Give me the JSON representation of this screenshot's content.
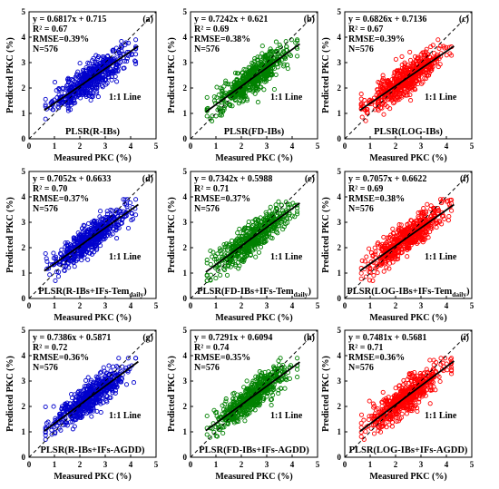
{
  "chart_data": [
    {
      "type": "scatter",
      "panel_label": "(a)",
      "method_label": "PLSR(R-IBs)",
      "equation": "y = 0.6817x + 0.715",
      "r2_label": "R² = 0.67",
      "rmse_label": "RMSE=0.39%",
      "n_label": "N=576",
      "slope": 0.6817,
      "intercept": 0.715,
      "color": "#0000cc",
      "xlabel": "Measured PKC (%)",
      "ylabel": "Predicted PKC (%)",
      "xlim": [
        0,
        5
      ],
      "ylim": [
        0,
        5
      ],
      "xticks": [
        "0",
        "1",
        "2",
        "3",
        "4",
        "5"
      ],
      "yticks": [
        "0",
        "1",
        "2",
        "3",
        "4",
        "5"
      ],
      "line_label": "1:1 Line"
    },
    {
      "type": "scatter",
      "panel_label": "(b)",
      "method_label": "PLSR(FD-IBs)",
      "equation": "y = 0.7242x + 0.621",
      "r2_label": "R² = 0.69",
      "rmse_label": "RMSE=0.38%",
      "n_label": "N=576",
      "slope": 0.7242,
      "intercept": 0.621,
      "color": "#008000",
      "xlabel": "Measured PKC (%)",
      "ylabel": "Predicted PKC (%)",
      "xlim": [
        0,
        5
      ],
      "ylim": [
        0,
        5
      ],
      "xticks": [
        "0",
        "1",
        "2",
        "3",
        "4",
        "5"
      ],
      "yticks": [
        "0",
        "1",
        "2",
        "3",
        "4",
        "5"
      ],
      "line_label": "1:1 Line"
    },
    {
      "type": "scatter",
      "panel_label": "(c)",
      "method_label": "PLSR(LOG-IBs)",
      "equation": "y = 0.6826x + 0.7136",
      "r2_label": "R² = 0.67",
      "rmse_label": "RMSE=0.39%",
      "n_label": "N=576",
      "slope": 0.6826,
      "intercept": 0.7136,
      "color": "#ff0000",
      "xlabel": "Measured PKC (%)",
      "ylabel": "Predicted PKC (%)",
      "xlim": [
        0,
        5
      ],
      "ylim": [
        0,
        5
      ],
      "xticks": [
        "0",
        "1",
        "2",
        "3",
        "4",
        "5"
      ],
      "yticks": [
        "0",
        "1",
        "2",
        "3",
        "4",
        "5"
      ],
      "line_label": "1:1 Line"
    },
    {
      "type": "scatter",
      "panel_label": "(d)",
      "method_label": "PLSR(R-IBs+IFs-Tem",
      "method_subscript": "daily",
      "method_suffix": ")",
      "equation": "y = 0.7052x + 0.6633",
      "r2_label": "R² = 0.70",
      "rmse_label": "RMSE=0.37%",
      "n_label": "N=576",
      "slope": 0.7052,
      "intercept": 0.6633,
      "color": "#0000cc",
      "xlabel": "Measured PKC (%)",
      "ylabel": "Predicted PKC (%)",
      "xlim": [
        0,
        5
      ],
      "ylim": [
        0,
        5
      ],
      "xticks": [
        "0",
        "1",
        "2",
        "3",
        "4",
        "5"
      ],
      "yticks": [
        "0",
        "1",
        "2",
        "3",
        "4",
        "5"
      ],
      "line_label": "1:1 Line"
    },
    {
      "type": "scatter",
      "panel_label": "(e)",
      "method_label": "PLSR(FD-IBs+IFs-Tem",
      "method_subscript": "daily",
      "method_suffix": ")",
      "equation": "y = 0.7342x + 0.5988",
      "r2_label": "R² = 0.71",
      "rmse_label": "RMSE=0.37%",
      "n_label": "N=576",
      "slope": 0.7342,
      "intercept": 0.5988,
      "color": "#008000",
      "xlabel": "Measured PKC (%)",
      "ylabel": "Predicted PKC (%)",
      "xlim": [
        0,
        5
      ],
      "ylim": [
        0,
        5
      ],
      "xticks": [
        "0",
        "1",
        "2",
        "3",
        "4",
        "5"
      ],
      "yticks": [
        "0",
        "1",
        "2",
        "3",
        "4",
        "5"
      ],
      "line_label": "1:1 Line"
    },
    {
      "type": "scatter",
      "panel_label": "(f)",
      "method_label": "PLSR(LOG-IBs+IFs-Tem",
      "method_subscript": "daily",
      "method_suffix": ")",
      "equation": "y = 0.7057x + 0.6622",
      "r2_label": "R² = 0.69",
      "rmse_label": "RMSE=0.38%",
      "n_label": "N=576",
      "slope": 0.7057,
      "intercept": 0.6622,
      "color": "#ff0000",
      "xlabel": "Measured PKC (%)",
      "ylabel": "Predicted PKC (%)",
      "xlim": [
        0,
        5
      ],
      "ylim": [
        0,
        5
      ],
      "xticks": [
        "0",
        "1",
        "2",
        "3",
        "4",
        "5"
      ],
      "yticks": [
        "0",
        "1",
        "2",
        "3",
        "4",
        "5"
      ],
      "line_label": "1:1 Line"
    },
    {
      "type": "scatter",
      "panel_label": "(g)",
      "method_label": "PLSR(R-IBs+IFs-AGDD)",
      "equation": "y = 0.7386x + 0.5871",
      "r2_label": "R² = 0.72",
      "rmse_label": "RMSE=0.36%",
      "n_label": "N=576",
      "slope": 0.7386,
      "intercept": 0.5871,
      "color": "#0000cc",
      "xlabel": "Measured PKC (%)",
      "ylabel": "Predicted PKC (%)",
      "xlim": [
        0,
        5
      ],
      "ylim": [
        0,
        5
      ],
      "xticks": [
        "0",
        "1",
        "2",
        "3",
        "4",
        "5"
      ],
      "yticks": [
        "0",
        "1",
        "2",
        "3",
        "4",
        "5"
      ],
      "line_label": "1:1 Line"
    },
    {
      "type": "scatter",
      "panel_label": "(h)",
      "method_label": "PLSR(FD-IBs+IFs-AGDD)",
      "equation": "y = 0.7291x + 0.6094",
      "r2_label": "R² = 0.74",
      "rmse_label": "RMSE=0.35%",
      "n_label": "N=576",
      "slope": 0.7291,
      "intercept": 0.6094,
      "color": "#008000",
      "xlabel": "Measured PKC (%)",
      "ylabel": "Predicted PKC (%)",
      "xlim": [
        0,
        5
      ],
      "ylim": [
        0,
        5
      ],
      "xticks": [
        "0",
        "1",
        "2",
        "3",
        "4",
        "5"
      ],
      "yticks": [
        "0",
        "1",
        "2",
        "3",
        "4",
        "5"
      ],
      "line_label": "1:1 Line"
    },
    {
      "type": "scatter",
      "panel_label": "(i)",
      "method_label": "PLSR(LOG-IBs+IFs-AGDD)",
      "equation": "y = 0.7481x + 0.5681",
      "r2_label": "R² = 0.71",
      "rmse_label": "RMSE=0.36%",
      "n_label": "N=576",
      "slope": 0.7481,
      "intercept": 0.5681,
      "color": "#ff0000",
      "xlabel": "Measured PKC (%)",
      "ylabel": "Predicted PKC (%)",
      "xlim": [
        0,
        5
      ],
      "ylim": [
        0,
        5
      ],
      "xticks": [
        "0",
        "1",
        "2",
        "3",
        "4",
        "5"
      ],
      "yticks": [
        "0",
        "1",
        "2",
        "3",
        "4",
        "5"
      ],
      "line_label": "1:1 Line"
    }
  ]
}
